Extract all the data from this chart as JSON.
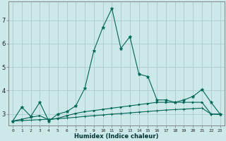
{
  "xlabel": "Humidex (Indice chaleur)",
  "background_color": "#cce8e8",
  "grid_color": "#aacccc",
  "line_color": "#006655",
  "xlim": [
    -0.5,
    23.5
  ],
  "ylim": [
    2.5,
    7.8
  ],
  "yticks": [
    3,
    4,
    5,
    6,
    7
  ],
  "xticks": [
    0,
    1,
    2,
    3,
    4,
    5,
    6,
    7,
    8,
    9,
    10,
    11,
    12,
    13,
    14,
    15,
    16,
    17,
    18,
    19,
    20,
    21,
    22,
    23
  ],
  "series1_x": [
    0,
    1,
    2,
    3,
    4,
    5,
    6,
    7,
    8,
    9,
    10,
    11,
    12,
    13,
    14,
    15,
    16,
    17,
    18,
    19,
    20,
    21,
    22,
    23
  ],
  "series1_y": [
    2.7,
    3.3,
    2.9,
    3.5,
    2.7,
    3.0,
    3.1,
    3.35,
    4.1,
    5.7,
    6.7,
    7.5,
    5.8,
    6.3,
    4.7,
    4.6,
    3.6,
    3.6,
    3.5,
    3.6,
    3.75,
    4.05,
    3.5,
    3.0
  ],
  "series2_x": [
    0,
    1,
    2,
    3,
    4,
    5,
    6,
    7,
    8,
    9,
    10,
    11,
    12,
    13,
    14,
    15,
    16,
    17,
    18,
    19,
    20,
    21,
    22,
    23
  ],
  "series2_y": [
    2.7,
    2.72,
    2.74,
    2.76,
    2.78,
    2.8,
    2.83,
    2.86,
    2.9,
    2.93,
    2.96,
    3.0,
    3.02,
    3.05,
    3.08,
    3.11,
    3.14,
    3.17,
    3.19,
    3.21,
    3.23,
    3.25,
    3.0,
    2.98
  ],
  "series3_x": [
    0,
    1,
    2,
    3,
    4,
    5,
    6,
    7,
    8,
    9,
    10,
    11,
    12,
    13,
    14,
    15,
    16,
    17,
    18,
    19,
    20,
    21,
    22,
    23
  ],
  "series3_y": [
    2.7,
    2.78,
    2.86,
    2.93,
    2.75,
    2.82,
    2.93,
    3.03,
    3.1,
    3.15,
    3.2,
    3.25,
    3.3,
    3.35,
    3.4,
    3.45,
    3.5,
    3.5,
    3.5,
    3.5,
    3.5,
    3.5,
    3.0,
    3.0
  ],
  "xlabel_fontsize": 6,
  "tick_fontsize_x": 4.5,
  "tick_fontsize_y": 6
}
